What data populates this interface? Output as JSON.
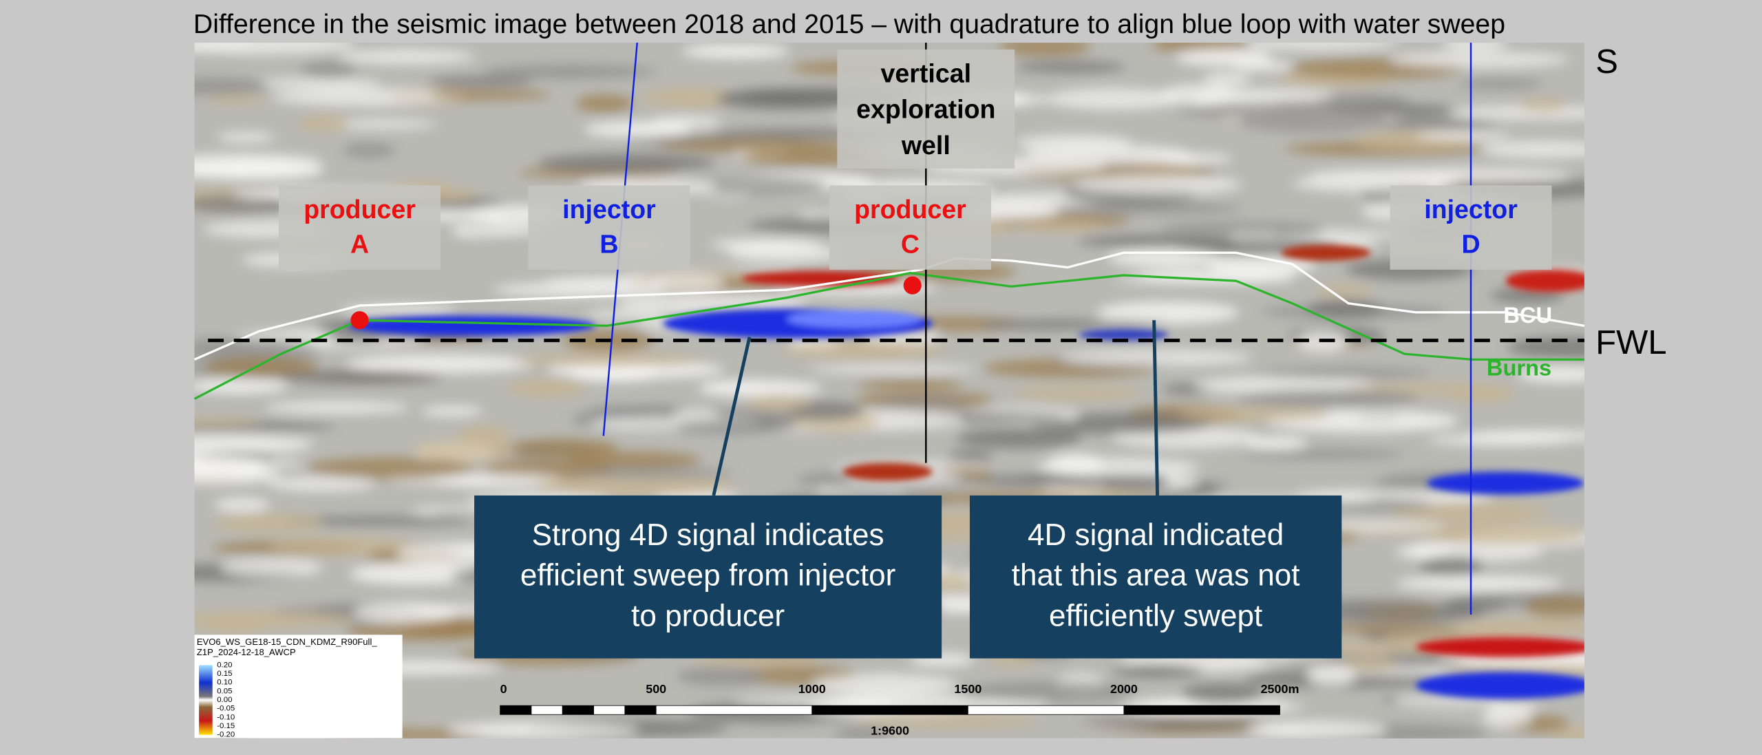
{
  "header": {
    "title": "Difference in the seismic image between 2018 and 2015 – with quadrature to align blue loop with water sweep",
    "direction": "S"
  },
  "wells": [
    {
      "role": "producer",
      "letter": "A"
    },
    {
      "role": "injector",
      "letter": "B"
    },
    {
      "role": "producer",
      "letter": "C"
    },
    {
      "role": "injector",
      "letter": "D"
    }
  ],
  "exploration_well": [
    "vertical",
    "exploration",
    "well"
  ],
  "horizons": {
    "fwl": "FWL",
    "bcu": "BCU",
    "burns": "Burns"
  },
  "callouts": [
    {
      "lines": [
        "Strong 4D signal indicates",
        "efficient sweep from injector",
        "to producer"
      ]
    },
    {
      "lines": [
        "4D signal indicated",
        "that this area was not",
        "efficiently swept"
      ]
    }
  ],
  "legend": {
    "title": [
      "EVO6_WS_GE18-15_CDN_KDMZ_R90Full_",
      "Z1P_2024-12-18_AWCP"
    ],
    "ticks": [
      "0.20",
      "0.15",
      "0.10",
      "0.05",
      "0.00",
      "-0.05",
      "-0.10",
      "-0.15",
      "-0.20"
    ]
  },
  "scale_bar": {
    "labels": [
      "0",
      "500",
      "1000",
      "1500",
      "2000",
      "2500m"
    ],
    "ratio": "1:9600"
  }
}
